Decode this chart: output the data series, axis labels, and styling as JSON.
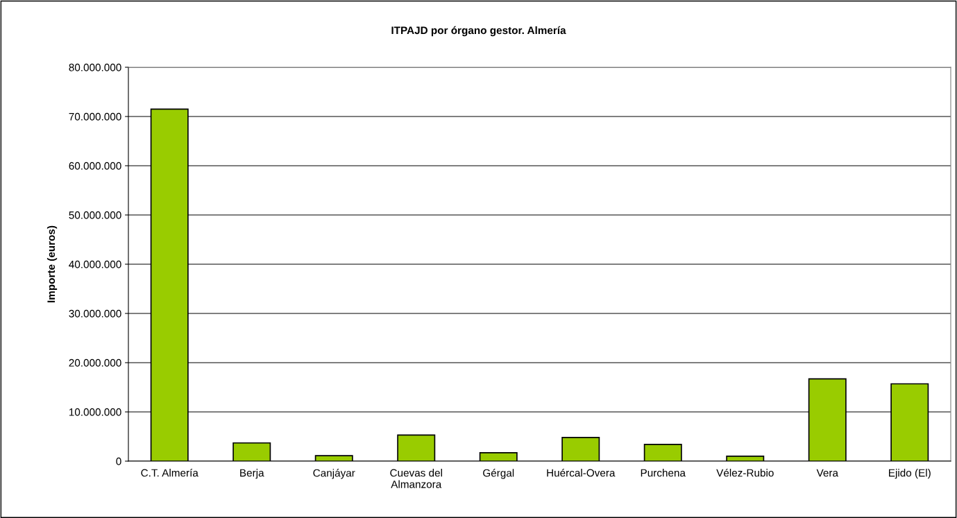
{
  "chart_data": {
    "type": "bar",
    "title": "ITPAJD por órgano gestor. Almería",
    "ylabel": "Importe (euros)",
    "categories": [
      "C.T. Almería",
      "Berja",
      "Canjáyar",
      "Cuevas del\nAlmanzora",
      "Gérgal",
      "Huércal-Overa",
      "Purchena",
      "Vélez-Rubio",
      "Vera",
      "Ejido (El)"
    ],
    "values": [
      71500000,
      3700000,
      1100000,
      5300000,
      1700000,
      4800000,
      3400000,
      1000000,
      16700000,
      15700000
    ],
    "color": "#99cc00",
    "ylim": [
      0,
      80000000
    ],
    "yticks": [
      {
        "value": 0,
        "label": "0"
      },
      {
        "value": 10000000,
        "label": "10.000.000"
      },
      {
        "value": 20000000,
        "label": "20.000.000"
      },
      {
        "value": 30000000,
        "label": "30.000.000"
      },
      {
        "value": 40000000,
        "label": "40.000.000"
      },
      {
        "value": 50000000,
        "label": "50.000.000"
      },
      {
        "value": 60000000,
        "label": "60.000.000"
      },
      {
        "value": 70000000,
        "label": "70.000.000"
      },
      {
        "value": 80000000,
        "label": "80.000.000"
      }
    ],
    "grid": "y",
    "legend": false
  }
}
